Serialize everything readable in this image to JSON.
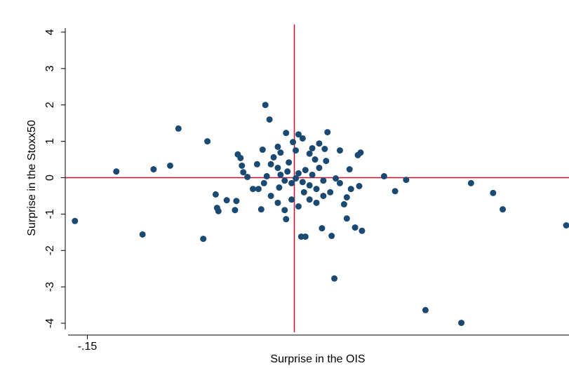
{
  "chart_data": {
    "type": "scatter",
    "x_label": "Surprise in the OIS",
    "y_label": "Surprise in the Stoxx50",
    "xlim": [
      -0.166,
      0.199
    ],
    "ylim": [
      -4.2,
      4.2
    ],
    "xticks": [
      {
        "value": -0.15,
        "label": "-.15"
      }
    ],
    "yticks": [
      -4,
      -3,
      -2,
      -1,
      0,
      1,
      2,
      3,
      4
    ],
    "reference_lines": {
      "x": 0,
      "y": 0,
      "color": "#c8102e"
    },
    "color": "#1a4a72",
    "x": [
      -0.159,
      -0.129,
      -0.11,
      -0.102,
      -0.09,
      -0.084,
      -0.066,
      -0.063,
      -0.057,
      -0.056,
      -0.055,
      -0.049,
      -0.043,
      -0.042,
      -0.041,
      -0.039,
      -0.038,
      -0.037,
      -0.034,
      -0.026,
      -0.024,
      -0.023,
      -0.021,
      -0.018,
      -0.006,
      -0.006,
      0.003,
      0.005,
      0.008,
      0.024,
      0.029,
      0.027,
      0.02,
      0.033,
      0.048,
      0.046,
      0.04,
      0.038,
      0.036,
      0.038,
      0.044,
      0.049,
      0.047,
      0.041,
      0.065,
      0.073,
      0.081,
      0.095,
      0.121,
      0.128,
      0.144,
      0.151,
      0.197,
      -0.015,
      -0.012,
      -0.01,
      -0.007,
      -0.005,
      -0.002,
      0.001,
      0.003,
      0.006,
      0.008,
      0.011,
      0.013,
      0.016,
      0.018,
      0.021,
      0.023,
      0.026,
      0.022,
      0.018,
      0.011,
      0.001,
      -0.01,
      -0.017,
      -0.022,
      -0.017,
      -0.012,
      -0.007,
      -0.002,
      0.003,
      0.011,
      0.016,
      0.021,
      0.03,
      0.033,
      -0.027,
      -0.03,
      -0.02,
      -0.011,
      -0.004,
      0.007,
      0.015,
      -0.001,
      -0.012,
      0.006,
      0.013
    ],
    "values": [
      -1.19,
      0.17,
      -1.56,
      0.23,
      0.33,
      1.35,
      -1.68,
      1.0,
      -0.46,
      -0.83,
      -0.92,
      -0.62,
      -0.89,
      -0.64,
      0.64,
      0.54,
      0.33,
      0.15,
      0.02,
      -0.31,
      -0.87,
      0.77,
      2.0,
      1.6,
      -1.14,
      1.23,
      1.19,
      -1.62,
      -1.62,
      1.25,
      -2.77,
      -1.6,
      -1.39,
      0.75,
      0.69,
      0.62,
      0.23,
      -0.54,
      -0.73,
      -1.12,
      -1.37,
      -1.46,
      -0.23,
      -0.31,
      0.04,
      -0.37,
      -0.06,
      -3.64,
      -3.99,
      -0.15,
      -0.42,
      -0.87,
      -1.31,
      0.56,
      0.27,
      0.08,
      -0.08,
      0.17,
      -0.15,
      -0.02,
      0.12,
      -0.12,
      0.21,
      -0.21,
      0.08,
      -0.31,
      0.27,
      -0.08,
      0.46,
      -0.4,
      0.79,
      0.94,
      0.66,
      0.75,
      0.69,
      0.37,
      -0.15,
      -0.5,
      -0.69,
      -0.89,
      -0.6,
      -0.79,
      -0.6,
      -0.69,
      -0.5,
      -0.02,
      -0.15,
      0.37,
      -0.31,
      0.04,
      -0.27,
      0.42,
      -0.4,
      0.5,
      0.98,
      0.85,
      1.08,
      0.81
    ]
  }
}
